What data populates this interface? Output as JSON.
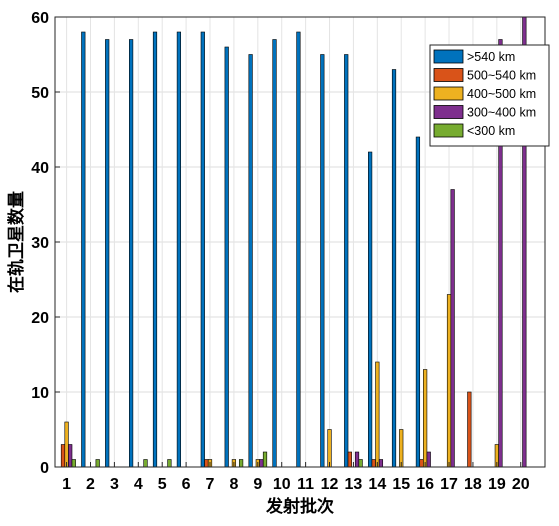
{
  "chart_data": {
    "type": "bar",
    "xlabel": "发射批次",
    "ylabel": "在轨卫星数量",
    "ylim": [
      0,
      60
    ],
    "yticks": [
      0,
      10,
      20,
      30,
      40,
      50,
      60
    ],
    "grid": true,
    "legend_position": "top-right",
    "categories": [
      "1",
      "2",
      "3",
      "4",
      "5",
      "6",
      "7",
      "8",
      "9",
      "10",
      "11",
      "12",
      "13",
      "14",
      "15",
      "16",
      "17",
      "18",
      "19",
      "20"
    ],
    "series": [
      {
        "name": ">540 km",
        "color": "#0072BD",
        "values": [
          0,
          58,
          57,
          57,
          58,
          58,
          58,
          56,
          55,
          57,
          58,
          55,
          55,
          42,
          53,
          44,
          0,
          0,
          0,
          0
        ]
      },
      {
        "name": "500~540 km",
        "color": "#D95319",
        "values": [
          3,
          0,
          0,
          0,
          0,
          0,
          1,
          0,
          0,
          0,
          0,
          0,
          2,
          1,
          0,
          1,
          0,
          10,
          0,
          0
        ]
      },
      {
        "name": "400~500 km",
        "color": "#EDB120",
        "values": [
          6,
          0,
          0,
          0,
          0,
          0,
          1,
          1,
          1,
          0,
          0,
          5,
          0,
          14,
          5,
          13,
          23,
          0,
          3,
          0
        ]
      },
      {
        "name": "300~400 km",
        "color": "#7E2F8E",
        "values": [
          3,
          0,
          0,
          0,
          0,
          0,
          0,
          0,
          1,
          0,
          0,
          0,
          2,
          1,
          0,
          2,
          37,
          0,
          57,
          60
        ]
      },
      {
        "name": "<300 km",
        "color": "#77AC30",
        "values": [
          1,
          1,
          0,
          1,
          1,
          0,
          0,
          1,
          2,
          0,
          0,
          0,
          1,
          0,
          0,
          0,
          0,
          0,
          0,
          0
        ]
      }
    ]
  }
}
